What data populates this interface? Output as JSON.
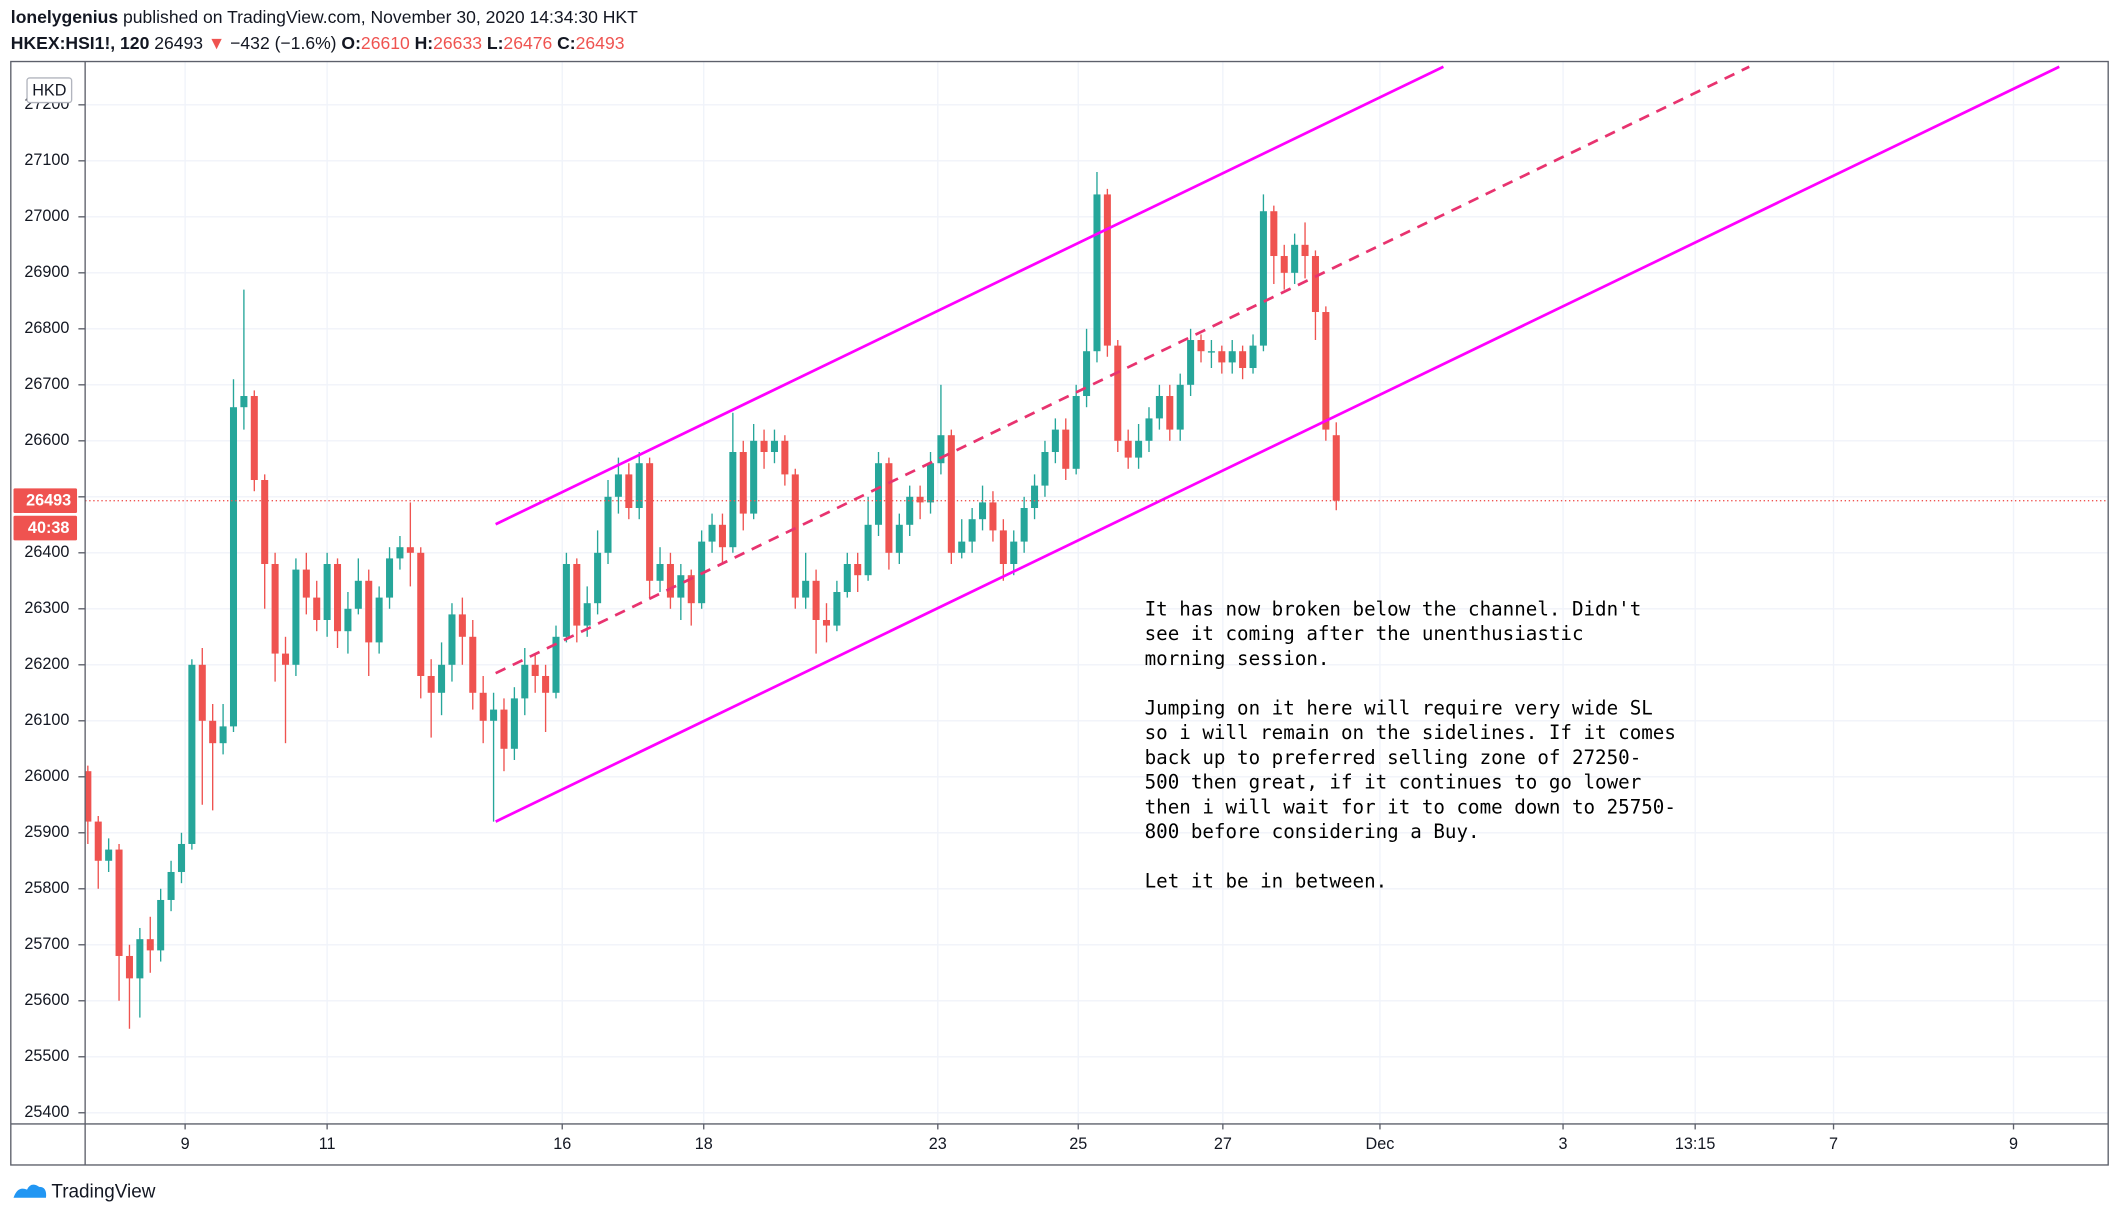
{
  "header": {
    "author": "lonelygenius",
    "published": "published on TradingView.com, November 30, 2020 14:34:30 HKT",
    "symbol": "HKEX:HSI1!, 120",
    "last": "26493",
    "arrow": "▼",
    "change": "−432 (−1.6%)",
    "o_label": "O:",
    "o_value": "26610",
    "h_label": "H:",
    "h_value": "26633",
    "l_label": "L:",
    "l_value": "26476",
    "c_label": "C:",
    "c_value": "26493"
  },
  "chart_data": {
    "type": "candlestick",
    "currency": "HKD",
    "up_color": "#26a69a",
    "down_color": "#ef5350",
    "grid": true,
    "xlim": [
      -0.26,
      194.2
    ],
    "xticks": [
      {
        "value": 9.35,
        "label": "9"
      },
      {
        "value": 23,
        "label": "11"
      },
      {
        "value": 45.6,
        "label": "16"
      },
      {
        "value": 59.2,
        "label": "18"
      },
      {
        "value": 81.7,
        "label": "23"
      },
      {
        "value": 95.2,
        "label": "25"
      },
      {
        "value": 109.1,
        "label": "27"
      },
      {
        "value": 124.2,
        "label": "Dec"
      },
      {
        "value": 141.8,
        "label": "3"
      },
      {
        "value": 154.5,
        "label": "13:15"
      },
      {
        "value": 167.8,
        "label": "7"
      },
      {
        "value": 185.1,
        "label": "9"
      }
    ],
    "ylim": [
      25380,
      27270
    ],
    "yticks": [
      25400,
      25500,
      25600,
      25700,
      25800,
      25900,
      26000,
      26100,
      26200,
      26300,
      26400,
      26500,
      26600,
      26700,
      26800,
      26900,
      27000,
      27100,
      27200
    ],
    "price_line": 26493,
    "countdown": "40:38",
    "open": [
      26010,
      25920,
      25850,
      25870,
      25680,
      25640,
      25710,
      25690,
      25780,
      25830,
      25880,
      26200,
      26100,
      26060,
      26090,
      26660,
      26680,
      26530,
      26380,
      26220,
      26200,
      26370,
      26320,
      26280,
      26380,
      26260,
      26300,
      26350,
      26240,
      26320,
      26390,
      26410,
      26400,
      26180,
      26150,
      26200,
      26290,
      26250,
      26150,
      26100,
      26120,
      26050,
      26140,
      26200,
      26180,
      26150,
      26250,
      26380,
      26270,
      26310,
      26400,
      26500,
      26540,
      26480,
      26560,
      26350,
      26380,
      26320,
      26360,
      26310,
      26420,
      26450,
      26410,
      26580,
      26470,
      26600,
      26580,
      26600,
      26540,
      26320,
      26350,
      26280,
      26270,
      26330,
      26380,
      26360,
      26450,
      26560,
      26400,
      26450,
      26500,
      26490,
      26560,
      26610,
      26400,
      26420,
      26460,
      26490,
      26440,
      26380,
      26420,
      26480,
      26520,
      26580,
      26620,
      26550,
      26680,
      26760,
      27040,
      26770,
      26600,
      26570,
      26600,
      26640,
      26680,
      26620,
      26700,
      26780,
      26760,
      26760,
      26740,
      26760,
      26730,
      26770,
      27010,
      26930,
      26900,
      26950,
      26930,
      26830,
      26610
    ],
    "high": [
      26020,
      25930,
      25890,
      25880,
      25700,
      25730,
      25750,
      25800,
      25850,
      25900,
      26210,
      26230,
      26130,
      26130,
      26710,
      26870,
      26690,
      26540,
      26400,
      26250,
      26390,
      26400,
      26350,
      26400,
      26390,
      26330,
      26390,
      26370,
      26340,
      26410,
      26430,
      26490,
      26410,
      26210,
      26240,
      26310,
      26320,
      26280,
      26180,
      26150,
      26140,
      26160,
      26230,
      26220,
      26200,
      26270,
      26400,
      26390,
      26340,
      26440,
      26530,
      26570,
      26560,
      26580,
      26570,
      26410,
      26400,
      26380,
      26370,
      26440,
      26470,
      26470,
      26650,
      26600,
      26630,
      26620,
      26620,
      26610,
      26550,
      26400,
      26370,
      26310,
      26350,
      26400,
      26400,
      26500,
      26580,
      26570,
      26470,
      26520,
      26520,
      26580,
      26700,
      26620,
      26460,
      26480,
      26520,
      26510,
      26460,
      26440,
      26500,
      26540,
      26600,
      26640,
      26640,
      26700,
      26800,
      27080,
      27050,
      26780,
      26620,
      26630,
      26660,
      26700,
      26700,
      26720,
      26800,
      26790,
      26780,
      26770,
      26780,
      26770,
      26790,
      27040,
      27020,
      26950,
      26970,
      26990,
      26940,
      26840,
      26633
    ],
    "low": [
      25880,
      25800,
      25830,
      25600,
      25550,
      25570,
      25650,
      25670,
      25760,
      25810,
      25870,
      25950,
      25940,
      26040,
      26080,
      26620,
      26510,
      26300,
      26170,
      26060,
      26180,
      26290,
      26260,
      26250,
      26230,
      26220,
      26290,
      26180,
      26220,
      26300,
      26370,
      26340,
      26140,
      26070,
      26110,
      26170,
      26200,
      26120,
      26060,
      25920,
      26010,
      26030,
      26110,
      26150,
      26080,
      26140,
      26240,
      26240,
      26250,
      26290,
      26380,
      26470,
      26460,
      26460,
      26320,
      26330,
      26300,
      26280,
      26270,
      26300,
      26400,
      26380,
      26400,
      26440,
      26460,
      26550,
      26560,
      26520,
      26300,
      26300,
      26220,
      26240,
      26260,
      26320,
      26330,
      26350,
      26430,
      26370,
      26380,
      26430,
      26460,
      26470,
      26540,
      26380,
      26390,
      26400,
      26440,
      26420,
      26350,
      26360,
      26400,
      26460,
      26500,
      26560,
      26530,
      26540,
      26660,
      26740,
      26750,
      26580,
      26550,
      26550,
      26580,
      26620,
      26600,
      26600,
      26680,
      26740,
      26730,
      26720,
      26720,
      26710,
      26720,
      26760,
      26880,
      26870,
      26880,
      26890,
      26780,
      26600,
      26476
    ],
    "close": [
      25920,
      25850,
      25870,
      25680,
      25640,
      25710,
      25690,
      25780,
      25830,
      25880,
      26200,
      26100,
      26060,
      26090,
      26660,
      26680,
      26530,
      26380,
      26220,
      26200,
      26370,
      26320,
      26280,
      26380,
      26260,
      26300,
      26350,
      26240,
      26320,
      26390,
      26410,
      26400,
      26180,
      26150,
      26200,
      26290,
      26250,
      26150,
      26100,
      26120,
      26050,
      26140,
      26200,
      26180,
      26150,
      26250,
      26380,
      26270,
      26310,
      26400,
      26500,
      26540,
      26480,
      26560,
      26350,
      26380,
      26320,
      26360,
      26310,
      26420,
      26450,
      26410,
      26580,
      26470,
      26600,
      26580,
      26600,
      26540,
      26320,
      26350,
      26280,
      26270,
      26330,
      26380,
      26360,
      26450,
      26560,
      26400,
      26450,
      26500,
      26490,
      26560,
      26610,
      26400,
      26420,
      26460,
      26490,
      26440,
      26380,
      26420,
      26480,
      26520,
      26580,
      26620,
      26550,
      26680,
      26760,
      27040,
      26770,
      26600,
      26570,
      26600,
      26640,
      26680,
      26620,
      26700,
      26780,
      26760,
      26760,
      26740,
      26760,
      26730,
      26770,
      27010,
      26930,
      26900,
      26950,
      26930,
      26830,
      26620,
      26493
    ],
    "trendlines": [
      {
        "x": [
          39.2,
          130.3
        ],
        "y": [
          26451,
          27268
        ],
        "color": "#ff00ff",
        "style": "solid"
      },
      {
        "x": [
          39.2,
          159.7
        ],
        "y": [
          26185,
          27268
        ],
        "color": "#e8336f",
        "style": "dashed"
      },
      {
        "x": [
          39.2,
          189.5
        ],
        "y": [
          25920,
          27268
        ],
        "color": "#ff00ff",
        "style": "solid"
      }
    ],
    "annotation": [
      "It has now broken below the channel. Didn't",
      "see it coming after the unenthusiastic",
      "morning session.",
      null,
      "Jumping on it here will require very wide SL",
      "so i will remain on the sidelines. If it comes",
      "back up to preferred selling zone of 27250-",
      "500 then great, if it continues to go lower",
      "then i will wait for it to come down to 25750-",
      "800 before considering a Buy.",
      null,
      "Let it be in between."
    ]
  },
  "footer": {
    "brand": "TradingView"
  }
}
